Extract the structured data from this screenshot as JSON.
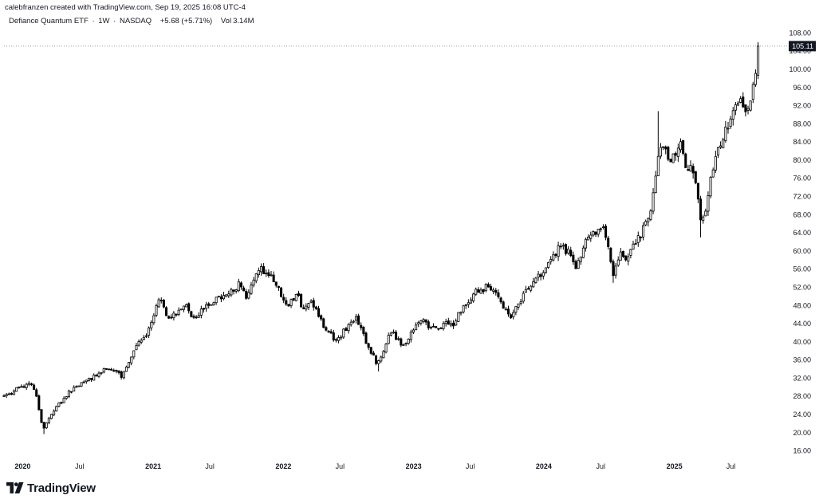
{
  "header": {
    "credit": "calebfranzen created with TradingView.com, Sep 19, 2025 16:08 UTC-4",
    "symbol_name": "Defiance Quantum ETF",
    "interval": "1W",
    "exchange": "NASDAQ",
    "change": "+5.68 (+5.71%)",
    "volume_label": "Vol",
    "volume_value": "3.14M"
  },
  "brand": {
    "name": "TradingView",
    "icon": "tradingview-logo-icon"
  },
  "colors": {
    "candle": "#000000",
    "price_line": "#787b86",
    "last_price_bg": "#131722",
    "last_price_text": "#ffffff"
  },
  "chart_data": {
    "type": "candlestick",
    "title": "",
    "interval": "1W",
    "xlabel": "",
    "ylabel": "",
    "ylim": [
      14,
      110
    ],
    "xlim": [
      "2019-12-02",
      "2025-12-01"
    ],
    "last_price": "105.11",
    "price_ticks": [
      "16.00",
      "20.00",
      "24.00",
      "28.00",
      "32.00",
      "36.00",
      "40.00",
      "44.00",
      "48.00",
      "52.00",
      "56.00",
      "60.00",
      "64.00",
      "68.00",
      "72.00",
      "76.00",
      "80.00",
      "84.00",
      "88.00",
      "92.00",
      "96.00",
      "100.00",
      "104.00",
      "108.00"
    ],
    "time_ticks": [
      {
        "label": "2020",
        "date": "2020-01-01",
        "major": true
      },
      {
        "label": "Jul",
        "date": "2020-07-01",
        "major": false
      },
      {
        "label": "2021",
        "date": "2021-01-01",
        "major": true
      },
      {
        "label": "Jul",
        "date": "2021-07-01",
        "major": false
      },
      {
        "label": "2022",
        "date": "2022-01-01",
        "major": true
      },
      {
        "label": "Jul",
        "date": "2022-07-01",
        "major": false
      },
      {
        "label": "2023",
        "date": "2023-01-01",
        "major": true
      },
      {
        "label": "Jul",
        "date": "2023-07-01",
        "major": false
      },
      {
        "label": "2024",
        "date": "2024-01-01",
        "major": true
      },
      {
        "label": "Jul",
        "date": "2024-07-01",
        "major": false
      },
      {
        "label": "2025",
        "date": "2025-01-01",
        "major": true
      },
      {
        "label": "Jul",
        "date": "2025-07-01",
        "major": false
      }
    ],
    "anchors": [
      [
        "2019-12-02",
        27.8
      ],
      [
        "2020-01-15",
        30.0
      ],
      [
        "2020-02-17",
        31.0
      ],
      [
        "2020-03-05",
        27.0
      ],
      [
        "2020-03-20",
        20.5
      ],
      [
        "2020-04-20",
        25.0
      ],
      [
        "2020-06-01",
        29.0
      ],
      [
        "2020-08-01",
        32.0
      ],
      [
        "2020-09-15",
        34.0
      ],
      [
        "2020-10-30",
        32.5
      ],
      [
        "2020-11-30",
        38.0
      ],
      [
        "2021-01-10",
        42.5
      ],
      [
        "2021-02-12",
        50.0
      ],
      [
        "2021-03-10",
        44.5
      ],
      [
        "2021-04-20",
        48.5
      ],
      [
        "2021-05-12",
        45.0
      ],
      [
        "2021-07-10",
        49.0
      ],
      [
        "2021-08-15",
        50.0
      ],
      [
        "2021-09-20",
        52.5
      ],
      [
        "2021-10-10",
        50.0
      ],
      [
        "2021-11-12",
        56.5
      ],
      [
        "2021-12-10",
        55.0
      ],
      [
        "2022-01-05",
        52.5
      ],
      [
        "2022-01-28",
        48.0
      ],
      [
        "2022-03-05",
        50.0
      ],
      [
        "2022-03-20",
        47.0
      ],
      [
        "2022-04-10",
        49.0
      ],
      [
        "2022-05-12",
        44.0
      ],
      [
        "2022-06-18",
        40.0
      ],
      [
        "2022-08-12",
        45.5
      ],
      [
        "2022-09-30",
        37.0
      ],
      [
        "2022-10-15",
        35.0
      ],
      [
        "2022-11-20",
        42.5
      ],
      [
        "2022-12-28",
        39.0
      ],
      [
        "2023-01-31",
        44.5
      ],
      [
        "2023-02-20",
        45.0
      ],
      [
        "2023-03-15",
        42.5
      ],
      [
        "2023-04-20",
        44.0
      ],
      [
        "2023-05-15",
        43.5
      ],
      [
        "2023-06-05",
        47.0
      ],
      [
        "2023-07-15",
        51.0
      ],
      [
        "2023-08-15",
        52.0
      ],
      [
        "2023-09-05",
        51.0
      ],
      [
        "2023-09-25",
        48.5
      ],
      [
        "2023-10-27",
        45.5
      ],
      [
        "2023-11-30",
        51.0
      ],
      [
        "2023-12-28",
        54.0
      ],
      [
        "2024-01-30",
        56.0
      ],
      [
        "2024-03-05",
        61.0
      ],
      [
        "2024-04-01",
        60.0
      ],
      [
        "2024-04-20",
        56.0
      ],
      [
        "2024-05-20",
        62.0
      ],
      [
        "2024-06-15",
        64.0
      ],
      [
        "2024-07-10",
        65.0
      ],
      [
        "2024-07-25",
        60.0
      ],
      [
        "2024-08-05",
        55.0
      ],
      [
        "2024-08-25",
        60.0
      ],
      [
        "2024-09-10",
        58.0
      ],
      [
        "2024-10-15",
        63.0
      ],
      [
        "2024-11-05",
        66.0
      ],
      [
        "2024-11-20",
        70.0
      ],
      [
        "2024-12-10",
        82.0
      ],
      [
        "2024-12-25",
        84.0
      ],
      [
        "2025-01-10",
        80.0
      ],
      [
        "2025-01-25",
        82.0
      ],
      [
        "2025-02-10",
        84.0
      ],
      [
        "2025-02-28",
        78.0
      ],
      [
        "2025-03-15",
        79.0
      ],
      [
        "2025-04-05",
        68.0
      ],
      [
        "2025-04-15",
        67.0
      ],
      [
        "2025-05-10",
        78.0
      ],
      [
        "2025-06-01",
        84.0
      ],
      [
        "2025-06-25",
        88.0
      ],
      [
        "2025-07-15",
        92.0
      ],
      [
        "2025-08-01",
        93.0
      ],
      [
        "2025-08-15",
        91.0
      ],
      [
        "2025-08-28",
        95.0
      ],
      [
        "2025-09-10",
        99.4
      ],
      [
        "2025-09-17",
        105.1
      ]
    ],
    "notable_wicks": [
      {
        "date": "2020-03-20",
        "low": 19.7
      },
      {
        "date": "2024-08-05",
        "low": 53.0
      },
      {
        "date": "2024-12-10",
        "high": 90.8
      },
      {
        "date": "2025-04-05",
        "low": 63.0
      },
      {
        "date": "2022-10-15",
        "low": 33.5
      },
      {
        "date": "2025-09-17",
        "high": 106.0
      }
    ]
  }
}
